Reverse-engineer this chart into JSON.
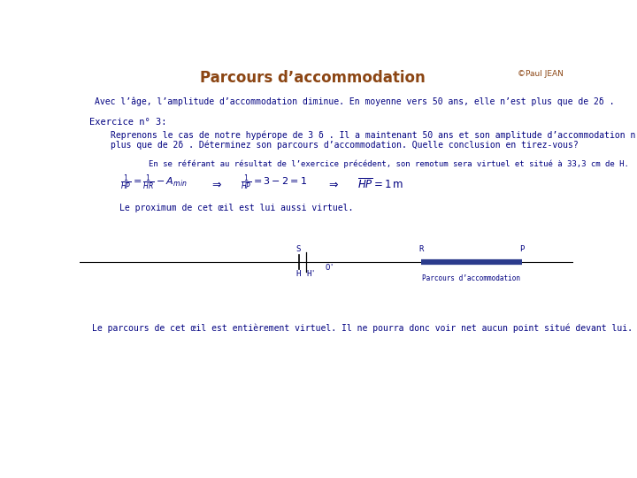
{
  "title": "Parcours d’accommodation",
  "title_color": "#8B4513",
  "copyright": "©Paul JEAN",
  "copyright_color": "#8B4513",
  "bg_color": "#FFFFFF",
  "text_color": "#000080",
  "dark_color": "#2B3B8C",
  "black": "#000000",
  "line1": "Avec l’âge, l’amplitude d’accommodation diminue. En moyenne vers 50 ans, elle n’est plus que de 2δ .",
  "exercise_label": "Exercice n° 3:",
  "exercise_text1": "Reprenons le cas de notre hypérope de 3 δ . Il a maintenant 50 ans et son amplitude d’accommodation n’est",
  "exercise_text2": "plus que de 2δ . Déterminez son parcours d’accommodation. Quelle conclusion en tirez-vous?",
  "note_text": "En se référant au résultat de l’exercice précédent, son remotum sera virtuel et situé à 33,3 cm de H.",
  "proximal_note": "Le proximum de cet œil est lui aussi virtuel.",
  "conclusion_text": "Le parcours de cet œil est entièrement virtuel. Il ne pourra donc voir net aucun point situé devant lui.",
  "diagram_label": "Parcours d’accommodation"
}
